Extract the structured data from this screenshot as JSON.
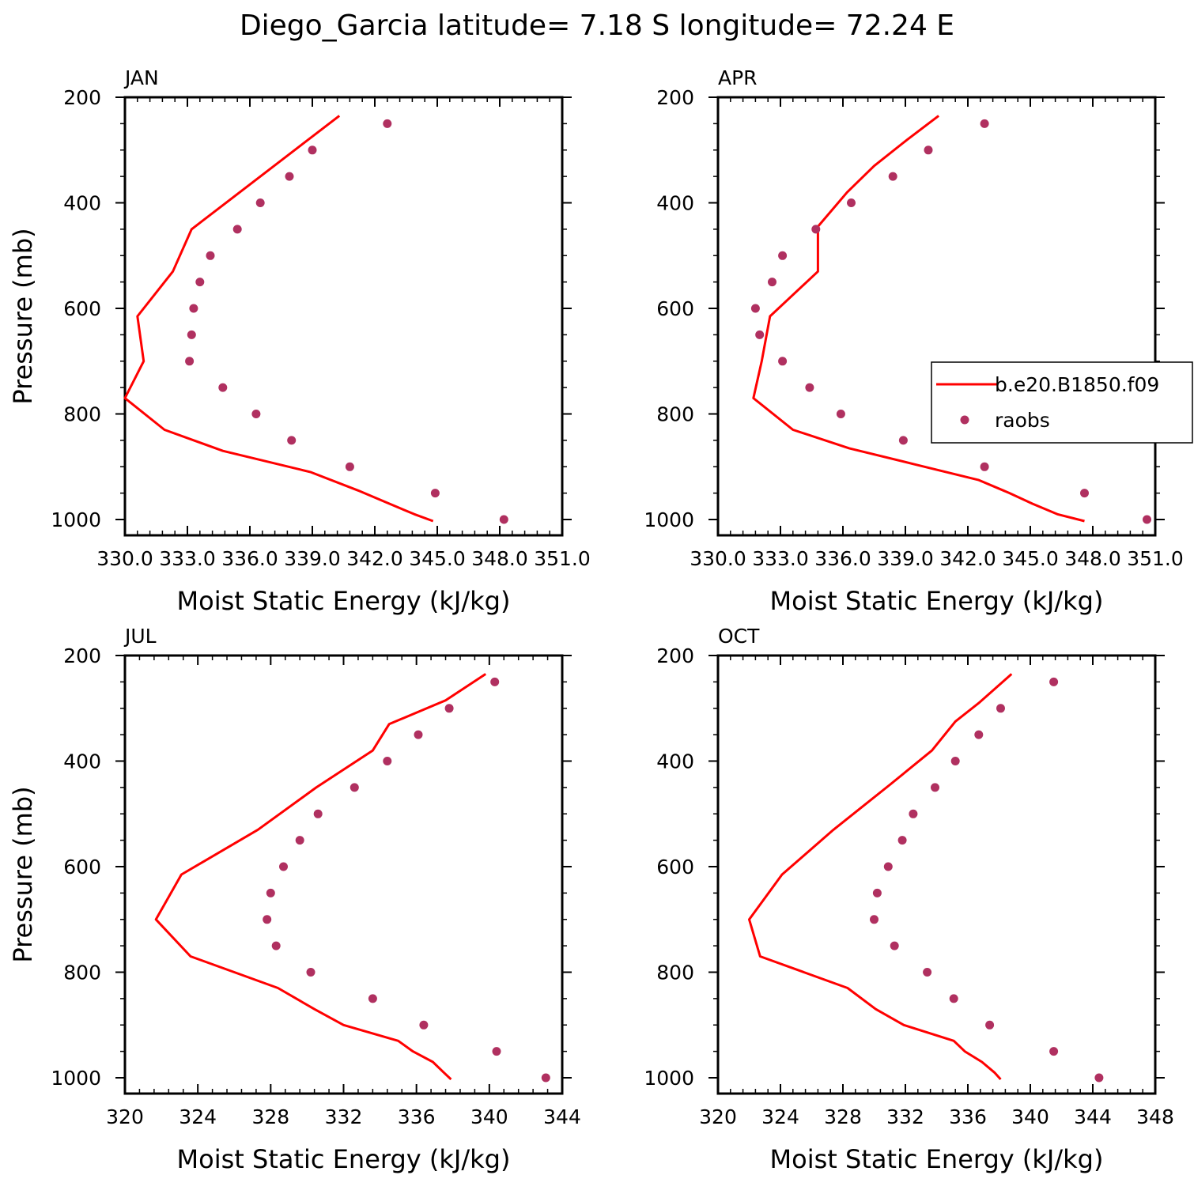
{
  "title": "Diego_Garcia  latitude= 7.18 S longitude= 72.24 E",
  "colors": {
    "model": "#ff0000",
    "obs": "#b03060",
    "axes": "#000000"
  },
  "chart_data": [
    {
      "type": "line",
      "panel": "JAN",
      "xlabel": "Moist Static Energy (kJ/kg)",
      "ylabel": "Pressure (mb)",
      "xlim": [
        330,
        351
      ],
      "ylim": [
        1000,
        200
      ],
      "y_inverted": true,
      "x_ticks": [
        330,
        333,
        336,
        339,
        342,
        345,
        348,
        351
      ],
      "x_tick_labels": [
        "330.0",
        "333.0",
        "336.0",
        "339.0",
        "342.0",
        "345.0",
        "348.0",
        "351.0"
      ],
      "y_ticks": [
        200,
        400,
        600,
        800,
        1000
      ],
      "y_tick_labels": [
        "200",
        "400",
        "600",
        "800",
        "1000"
      ],
      "series": [
        {
          "name": "b.e20.B1850.f09",
          "style": "line",
          "points": [
            [
              340.3,
              235
            ],
            [
              333.2,
              450
            ],
            [
              332.3,
              530
            ],
            [
              330.6,
              615
            ],
            [
              330.9,
              700
            ],
            [
              330.0,
              770
            ],
            [
              331.9,
              830
            ],
            [
              334.7,
              870
            ],
            [
              338.9,
              910
            ],
            [
              341.2,
              945
            ],
            [
              342.7,
              970
            ],
            [
              343.9,
              990
            ],
            [
              344.8,
              1003
            ]
          ]
        },
        {
          "name": "raobs",
          "style": "markers",
          "points": [
            [
              342.6,
              250
            ],
            [
              339.0,
              300
            ],
            [
              337.9,
              350
            ],
            [
              336.5,
              400
            ],
            [
              335.4,
              450
            ],
            [
              334.1,
              500
            ],
            [
              333.6,
              550
            ],
            [
              333.3,
              600
            ],
            [
              333.2,
              650
            ],
            [
              333.1,
              700
            ],
            [
              334.7,
              750
            ],
            [
              336.3,
              800
            ],
            [
              338.0,
              850
            ],
            [
              340.8,
              900
            ],
            [
              344.9,
              950
            ],
            [
              348.2,
              1000
            ]
          ]
        }
      ]
    },
    {
      "type": "line",
      "panel": "APR",
      "xlabel": "Moist Static Energy (kJ/kg)",
      "ylabel": "",
      "xlim": [
        330,
        351
      ],
      "ylim": [
        1000,
        200
      ],
      "y_inverted": true,
      "x_ticks": [
        330,
        333,
        336,
        339,
        342,
        345,
        348,
        351
      ],
      "x_tick_labels": [
        "330.0",
        "333.0",
        "336.0",
        "339.0",
        "342.0",
        "345.0",
        "348.0",
        "351.0"
      ],
      "y_ticks": [
        200,
        400,
        600,
        800,
        1000
      ],
      "y_tick_labels": [
        "200",
        "400",
        "600",
        "800",
        "1000"
      ],
      "legend": {
        "position": "right-middle",
        "entries": [
          "b.e20.B1850.f09",
          "raobs"
        ]
      },
      "series": [
        {
          "name": "b.e20.B1850.f09",
          "style": "line",
          "points": [
            [
              340.6,
              235
            ],
            [
              339.1,
              280
            ],
            [
              337.5,
              330
            ],
            [
              336.2,
              380
            ],
            [
              334.8,
              445
            ],
            [
              334.8,
              530
            ],
            [
              332.5,
              615
            ],
            [
              332.1,
              700
            ],
            [
              331.7,
              770
            ],
            [
              333.6,
              830
            ],
            [
              336.3,
              865
            ],
            [
              339.4,
              895
            ],
            [
              342.5,
              925
            ],
            [
              344.0,
              950
            ],
            [
              345.1,
              970
            ],
            [
              346.3,
              990
            ],
            [
              347.6,
              1003
            ]
          ]
        },
        {
          "name": "raobs",
          "style": "markers",
          "points": [
            [
              342.8,
              250
            ],
            [
              340.1,
              300
            ],
            [
              338.4,
              350
            ],
            [
              336.4,
              400
            ],
            [
              334.7,
              450
            ],
            [
              333.1,
              500
            ],
            [
              332.6,
              550
            ],
            [
              331.8,
              600
            ],
            [
              332.0,
              650
            ],
            [
              333.1,
              700
            ],
            [
              334.4,
              750
            ],
            [
              335.9,
              800
            ],
            [
              338.9,
              850
            ],
            [
              342.8,
              900
            ],
            [
              347.6,
              950
            ],
            [
              350.6,
              1000
            ]
          ]
        }
      ]
    },
    {
      "type": "line",
      "panel": "JUL",
      "xlabel": "Moist Static Energy (kJ/kg)",
      "ylabel": "Pressure (mb)",
      "xlim": [
        320,
        344
      ],
      "ylim": [
        1000,
        200
      ],
      "y_inverted": true,
      "x_ticks": [
        320,
        324,
        328,
        332,
        336,
        340,
        344
      ],
      "x_tick_labels": [
        "320",
        "324",
        "328",
        "332",
        "336",
        "340",
        "344"
      ],
      "y_ticks": [
        200,
        400,
        600,
        800,
        1000
      ],
      "y_tick_labels": [
        "200",
        "400",
        "600",
        "800",
        "1000"
      ],
      "series": [
        {
          "name": "b.e20.B1850.f09",
          "style": "line",
          "points": [
            [
              339.8,
              235
            ],
            [
              337.6,
              285
            ],
            [
              334.5,
              330
            ],
            [
              333.6,
              380
            ],
            [
              330.5,
              450
            ],
            [
              327.3,
              530
            ],
            [
              323.1,
              615
            ],
            [
              321.7,
              700
            ],
            [
              323.6,
              770
            ],
            [
              328.4,
              830
            ],
            [
              330.4,
              870
            ],
            [
              332.0,
              900
            ],
            [
              335.0,
              930
            ],
            [
              335.8,
              950
            ],
            [
              336.9,
              970
            ],
            [
              337.5,
              990
            ],
            [
              337.9,
              1003
            ]
          ]
        },
        {
          "name": "raobs",
          "style": "markers",
          "points": [
            [
              340.3,
              250
            ],
            [
              337.8,
              300
            ],
            [
              336.1,
              350
            ],
            [
              334.4,
              400
            ],
            [
              332.6,
              450
            ],
            [
              330.6,
              500
            ],
            [
              329.6,
              550
            ],
            [
              328.7,
              600
            ],
            [
              328.0,
              650
            ],
            [
              327.8,
              700
            ],
            [
              328.3,
              750
            ],
            [
              330.2,
              800
            ],
            [
              333.6,
              850
            ],
            [
              336.4,
              900
            ],
            [
              340.4,
              950
            ],
            [
              343.1,
              1000
            ]
          ]
        }
      ]
    },
    {
      "type": "line",
      "panel": "OCT",
      "xlabel": "Moist Static Energy (kJ/kg)",
      "ylabel": "",
      "xlim": [
        320,
        348
      ],
      "ylim": [
        1000,
        200
      ],
      "y_inverted": true,
      "x_ticks": [
        320,
        324,
        328,
        332,
        336,
        340,
        344,
        348
      ],
      "x_tick_labels": [
        "320",
        "324",
        "328",
        "332",
        "336",
        "340",
        "344",
        "348"
      ],
      "y_ticks": [
        200,
        400,
        600,
        800,
        1000
      ],
      "y_tick_labels": [
        "200",
        "400",
        "600",
        "800",
        "1000"
      ],
      "series": [
        {
          "name": "b.e20.B1850.f09",
          "style": "line",
          "points": [
            [
              338.8,
              235
            ],
            [
              336.7,
              290
            ],
            [
              335.2,
              325
            ],
            [
              333.7,
              380
            ],
            [
              331.0,
              445
            ],
            [
              327.4,
              530
            ],
            [
              324.1,
              615
            ],
            [
              322.0,
              700
            ],
            [
              322.7,
              770
            ],
            [
              328.3,
              830
            ],
            [
              330.1,
              870
            ],
            [
              331.9,
              900
            ],
            [
              335.1,
              930
            ],
            [
              335.8,
              950
            ],
            [
              336.9,
              970
            ],
            [
              337.7,
              990
            ],
            [
              338.1,
              1003
            ]
          ]
        },
        {
          "name": "raobs",
          "style": "markers",
          "points": [
            [
              341.5,
              250
            ],
            [
              338.1,
              300
            ],
            [
              336.7,
              350
            ],
            [
              335.2,
              400
            ],
            [
              333.9,
              450
            ],
            [
              332.5,
              500
            ],
            [
              331.8,
              550
            ],
            [
              330.9,
              600
            ],
            [
              330.2,
              650
            ],
            [
              330.0,
              700
            ],
            [
              331.3,
              750
            ],
            [
              333.4,
              800
            ],
            [
              335.1,
              850
            ],
            [
              337.4,
              900
            ],
            [
              341.5,
              950
            ],
            [
              344.4,
              1000
            ]
          ]
        }
      ]
    }
  ]
}
